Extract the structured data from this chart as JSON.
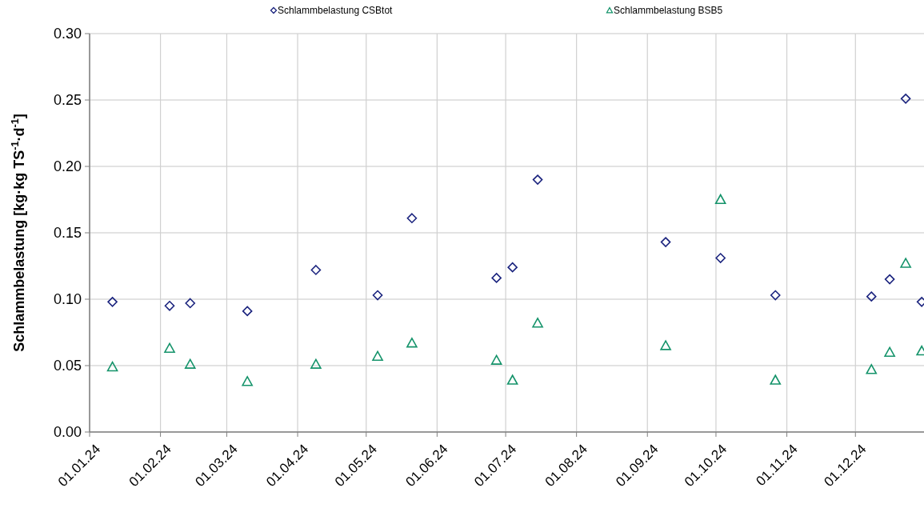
{
  "chart_data": {
    "type": "scatter",
    "ylabel": "Schlammbelastung  [kg·kg TS$^{-1}$·d$^{-1}$]",
    "xlim": [
      "2024-01-01",
      "2024-12-31"
    ],
    "xticks": [
      {
        "value": "2024-01-01",
        "label": "01.01.24"
      },
      {
        "value": "2024-02-01",
        "label": "01.02.24"
      },
      {
        "value": "2024-03-01",
        "label": "01.03.24"
      },
      {
        "value": "2024-04-01",
        "label": "01.04.24"
      },
      {
        "value": "2024-05-01",
        "label": "01.05.24"
      },
      {
        "value": "2024-06-01",
        "label": "01.06.24"
      },
      {
        "value": "2024-07-01",
        "label": "01.07.24"
      },
      {
        "value": "2024-08-01",
        "label": "01.08.24"
      },
      {
        "value": "2024-09-01",
        "label": "01.09.24"
      },
      {
        "value": "2024-10-01",
        "label": "01.10.24"
      },
      {
        "value": "2024-11-01",
        "label": "01.11.24"
      },
      {
        "value": "2024-12-01",
        "label": "01.12.24"
      }
    ],
    "ylim": [
      0,
      0.3
    ],
    "yticks": [
      {
        "value": 0,
        "label": "0.00"
      },
      {
        "value": 0.05,
        "label": "0.05"
      },
      {
        "value": 0.1,
        "label": "0.10"
      },
      {
        "value": 0.15,
        "label": "0.15"
      },
      {
        "value": 0.2,
        "label": "0.20"
      },
      {
        "value": 0.25,
        "label": "0.25"
      },
      {
        "value": 0.3,
        "label": "0.30"
      }
    ],
    "grid": true,
    "legend": "top",
    "x": [
      "2024-01-11",
      "2024-02-05",
      "2024-02-14",
      "2024-03-10",
      "2024-04-09",
      "2024-05-06",
      "2024-05-21",
      "2024-06-27",
      "2024-07-04",
      "2024-07-15",
      "2024-09-09",
      "2024-10-03",
      "2024-10-27",
      "2024-12-08",
      "2024-12-16",
      "2024-12-23",
      "2024-12-30"
    ],
    "series": [
      {
        "name": "Schlammbelastung CSBtot",
        "color": "#1a237e",
        "marker": "diamond",
        "values": [
          0.098,
          0.095,
          0.097,
          0.091,
          0.122,
          0.103,
          0.161,
          0.116,
          0.124,
          0.19,
          0.143,
          0.131,
          0.103,
          0.102,
          0.115,
          0.251,
          0.098
        ]
      },
      {
        "name": "Schlammbelastung BSB5",
        "color": "#14936a",
        "marker": "triangle",
        "values": [
          0.049,
          0.063,
          0.051,
          0.038,
          0.051,
          0.057,
          0.067,
          0.054,
          0.039,
          0.082,
          0.065,
          0.175,
          0.039,
          0.047,
          0.06,
          0.127,
          0.061
        ]
      }
    ]
  }
}
